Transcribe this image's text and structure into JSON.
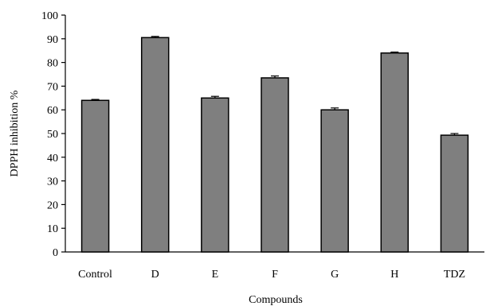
{
  "chart_data": {
    "type": "bar",
    "xlabel": "Compounds",
    "ylabel": "DPPH inhibition %",
    "ylim": [
      0,
      100
    ],
    "yticks": [
      0,
      10,
      20,
      30,
      40,
      50,
      60,
      70,
      80,
      90,
      100
    ],
    "grid": false,
    "categories": [
      "Control",
      "D",
      "E",
      "F",
      "G",
      "H",
      "TDZ"
    ],
    "values": [
      64,
      90.5,
      65,
      73.5,
      60,
      84,
      49.3
    ],
    "errors": [
      0.4,
      0.5,
      0.7,
      0.8,
      0.8,
      0.4,
      0.7
    ],
    "bar_color": "#7f7f7f",
    "bar_edge_color": "#000000"
  }
}
